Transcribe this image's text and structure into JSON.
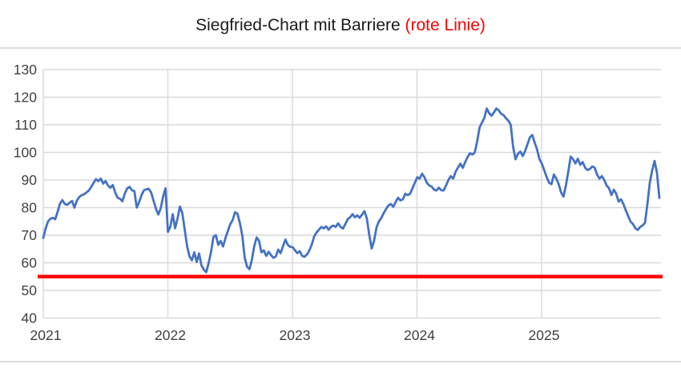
{
  "chart": {
    "title_main": "Siegfried-Chart mit Barriere ",
    "title_highlight": "(rote Linie)",
    "title_main_color": "#1a1a1a",
    "title_highlight_color": "#ff0000"
  },
  "chart_data": {
    "type": "line",
    "title": "Siegfried-Chart mit Barriere (rote Linie)",
    "xlabel": "",
    "ylabel": "",
    "ylim": [
      40,
      130
    ],
    "y_ticks": [
      40,
      50,
      60,
      70,
      80,
      90,
      100,
      110,
      120,
      130
    ],
    "x_tick_labels": [
      "2021",
      "2022",
      "2023",
      "2024",
      "2025"
    ],
    "x_start_year": 2021,
    "points_per_year": 52,
    "grid": true,
    "legend_position": "none",
    "grid_color": "#d9d9d9",
    "label_color": "#404040",
    "barrier": {
      "name": "Barriere (rote Linie)",
      "value": 55,
      "color": "#ff0000"
    },
    "series": [
      {
        "name": "Siegfried",
        "color": "#4472c4",
        "values": [
          69.0,
          72.5,
          75.0,
          76.0,
          76.3,
          75.8,
          78.5,
          81.5,
          82.7,
          81.3,
          81.0,
          81.8,
          82.4,
          80.0,
          82.5,
          83.8,
          84.5,
          84.8,
          85.5,
          86.2,
          87.5,
          89.0,
          90.3,
          89.6,
          90.5,
          88.7,
          89.6,
          88.0,
          87.2,
          88.2,
          85.5,
          83.6,
          83.2,
          82.3,
          85.0,
          87.0,
          87.5,
          86.3,
          86.0,
          80.0,
          82.0,
          84.5,
          86.3,
          86.6,
          86.8,
          85.5,
          82.5,
          79.6,
          77.5,
          79.8,
          84.0,
          87.0,
          71.2,
          73.0,
          77.6,
          72.5,
          76.0,
          80.4,
          78.0,
          72.0,
          66.0,
          62.3,
          60.9,
          63.8,
          60.3,
          63.4,
          59.0,
          57.5,
          56.6,
          60.0,
          64.0,
          69.4,
          70.0,
          66.5,
          67.9,
          65.9,
          69.0,
          71.5,
          74.0,
          75.5,
          78.3,
          77.8,
          74.5,
          70.0,
          62.0,
          58.6,
          57.7,
          61.0,
          66.0,
          69.2,
          68.0,
          63.8,
          64.5,
          62.5,
          64.0,
          62.8,
          61.8,
          62.3,
          64.8,
          63.5,
          66.0,
          68.4,
          66.5,
          65.8,
          65.7,
          64.5,
          63.5,
          64.2,
          62.5,
          62.2,
          63.0,
          64.5,
          66.6,
          69.5,
          71.0,
          72.0,
          73.0,
          72.5,
          73.2,
          72.0,
          73.0,
          73.5,
          73.0,
          74.3,
          73.0,
          72.4,
          74.0,
          75.8,
          76.5,
          77.6,
          76.5,
          77.2,
          76.3,
          77.5,
          78.7,
          76.0,
          70.0,
          65.2,
          68.0,
          72.8,
          75.0,
          76.2,
          78.0,
          79.5,
          80.8,
          81.3,
          80.3,
          82.0,
          83.6,
          82.6,
          83.0,
          85.0,
          84.5,
          85.0,
          87.0,
          89.0,
          91.0,
          90.5,
          92.3,
          91.0,
          89.0,
          88.0,
          87.6,
          86.5,
          86.2,
          87.2,
          86.3,
          86.2,
          88.0,
          90.0,
          91.4,
          90.5,
          93.0,
          94.5,
          95.9,
          94.4,
          96.5,
          98.3,
          99.7,
          99.2,
          100.0,
          104.0,
          109.0,
          110.8,
          112.5,
          115.9,
          114.2,
          113.3,
          114.5,
          115.9,
          115.2,
          114.0,
          113.5,
          112.4,
          111.5,
          110.0,
          102.0,
          97.5,
          99.5,
          100.3,
          98.7,
          100.5,
          103.0,
          105.5,
          106.3,
          103.5,
          101.0,
          97.5,
          95.9,
          93.5,
          91.0,
          89.0,
          88.5,
          92.0,
          90.5,
          88.5,
          85.5,
          84.0,
          88.0,
          93.0,
          98.5,
          97.5,
          96.0,
          97.7,
          95.5,
          96.5,
          94.5,
          93.6,
          94.0,
          94.9,
          94.5,
          92.0,
          90.5,
          91.4,
          90.0,
          88.0,
          87.0,
          84.6,
          86.5,
          85.0,
          82.2,
          83.0,
          81.3,
          79.0,
          76.9,
          74.9,
          74.0,
          72.5,
          71.9,
          73.0,
          73.5,
          74.5,
          81.2,
          89.0,
          93.5,
          96.9,
          92.6,
          83.5
        ]
      }
    ]
  }
}
